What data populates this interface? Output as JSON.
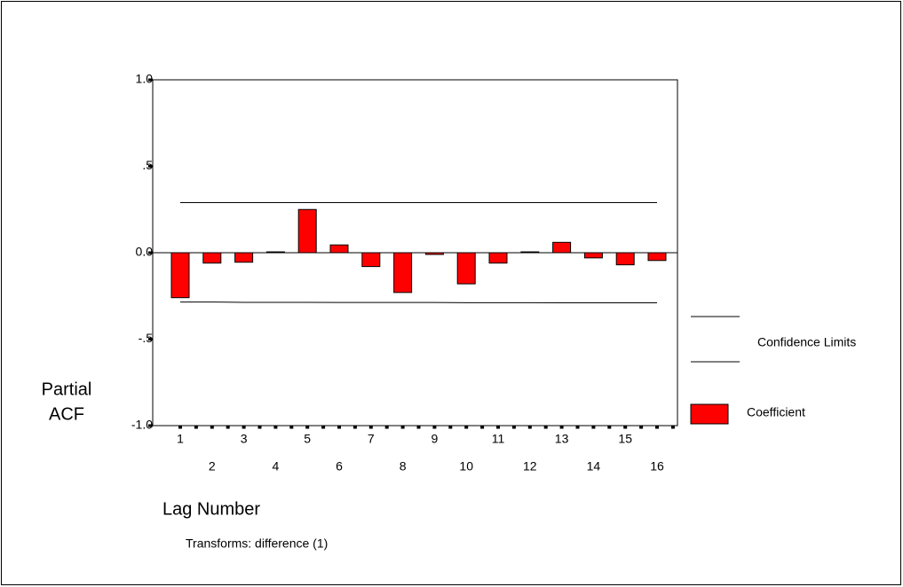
{
  "chart_data": {
    "type": "bar",
    "ylabel": [
      "Partial",
      "ACF"
    ],
    "xlabel": "Lag Number",
    "note": "Transforms: difference (1)",
    "categories": [
      "1",
      "2",
      "3",
      "4",
      "5",
      "6",
      "7",
      "8",
      "9",
      "10",
      "11",
      "12",
      "13",
      "14",
      "15",
      "16"
    ],
    "series": [
      {
        "name": "Coefficient",
        "color": "#ff0000",
        "values": [
          -0.26,
          -0.06,
          -0.055,
          0.005,
          0.25,
          0.045,
          -0.08,
          -0.23,
          -0.01,
          -0.18,
          -0.06,
          0.005,
          0.06,
          -0.03,
          -0.07,
          -0.045
        ]
      }
    ],
    "confidence_limits": {
      "name": "Confidence Limits",
      "upper": [
        0.29,
        0.29,
        0.29,
        0.29,
        0.29,
        0.29,
        0.29,
        0.29,
        0.29,
        0.29,
        0.29,
        0.29,
        0.29,
        0.29,
        0.29,
        0.29
      ],
      "lower": [
        -0.285,
        -0.285,
        -0.287,
        -0.287,
        -0.287,
        -0.288,
        -0.288,
        -0.288,
        -0.288,
        -0.289,
        -0.289,
        -0.289,
        -0.29,
        -0.29,
        -0.29,
        -0.29
      ]
    },
    "ylim": [
      -1,
      1
    ],
    "yticks": [
      {
        "value": -1,
        "label": "-1.0"
      },
      {
        "value": -0.5,
        "label": "-.5"
      },
      {
        "value": 0,
        "label": "0.0"
      },
      {
        "value": 0.5,
        "label": ".5"
      },
      {
        "value": 1,
        "label": "1.0"
      }
    ]
  }
}
